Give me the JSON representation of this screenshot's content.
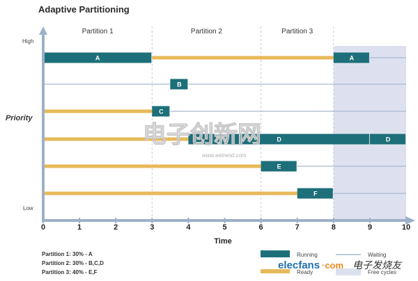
{
  "title": "Adaptive Partitioning",
  "partitions": [
    {
      "label": "Partition 1",
      "start": 0,
      "end": 3
    },
    {
      "label": "Partition 2",
      "start": 3,
      "end": 6
    },
    {
      "label": "Partition 3",
      "start": 6,
      "end": 8
    }
  ],
  "free_cycles_range": [
    8,
    10
  ],
  "y_axis": {
    "label": "Priority",
    "high": "High",
    "low": "Low"
  },
  "x_axis": {
    "label": "Time",
    "ticks": [
      "0",
      "1",
      "2",
      "3",
      "4",
      "5",
      "6",
      "7",
      "8",
      "9",
      "10"
    ],
    "range": [
      0,
      10
    ]
  },
  "rows": [
    {
      "thread": "A",
      "segments": [
        {
          "state": "running",
          "start": 0,
          "end": 3,
          "label": "A"
        },
        {
          "state": "ready",
          "start": 3,
          "end": 8
        },
        {
          "state": "running",
          "start": 8,
          "end": 9,
          "label": "A"
        },
        {
          "state": "waiting",
          "start": 9,
          "end": 10
        }
      ]
    },
    {
      "thread": "B",
      "segments": [
        {
          "state": "waiting",
          "start": 0,
          "end": 3.5
        },
        {
          "state": "running",
          "start": 3.5,
          "end": 4,
          "label": "B"
        },
        {
          "state": "waiting",
          "start": 4,
          "end": 10
        }
      ]
    },
    {
      "thread": "C",
      "segments": [
        {
          "state": "ready",
          "start": 0,
          "end": 3
        },
        {
          "state": "running",
          "start": 3,
          "end": 3.5,
          "label": "C"
        },
        {
          "state": "waiting",
          "start": 3.5,
          "end": 10
        }
      ]
    },
    {
      "thread": "D",
      "segments": [
        {
          "state": "ready",
          "start": 0,
          "end": 4
        },
        {
          "state": "running",
          "start": 4,
          "end": 9,
          "label": "D"
        },
        {
          "state": "running",
          "start": 9,
          "end": 10,
          "label": "D"
        }
      ]
    },
    {
      "thread": "E",
      "segments": [
        {
          "state": "ready",
          "start": 0,
          "end": 6
        },
        {
          "state": "running",
          "start": 6,
          "end": 7,
          "label": "E"
        },
        {
          "state": "waiting",
          "start": 7,
          "end": 10
        }
      ]
    },
    {
      "thread": "F",
      "segments": [
        {
          "state": "ready",
          "start": 0,
          "end": 7
        },
        {
          "state": "running",
          "start": 7,
          "end": 8,
          "label": "F"
        },
        {
          "state": "waiting",
          "start": 8,
          "end": 10
        }
      ]
    }
  ],
  "legend": {
    "running": "Running",
    "ready": "Ready",
    "waiting": "Waiting",
    "free_cycles": "Free cycles"
  },
  "footnotes": [
    "Partition 1: 30% - A",
    "Partition 2: 30% - B,C,D",
    "Partition 3: 40% - E,F"
  ],
  "watermarks": {
    "site_cn": "电子创新网",
    "site_url": "www.eetrend.com",
    "brand": "elecfans",
    "brand_suffix": "·com",
    "brand_cn": "电子发烧友"
  },
  "colors": {
    "running": "#1d6f79",
    "ready": "#e7b95a",
    "waiting": "#a9b9cf",
    "free_cycles": "#dde1ef",
    "axis": "#9db0c9",
    "brand_blue": "#1f6fb3",
    "brand_orange": "#f08a1c"
  }
}
